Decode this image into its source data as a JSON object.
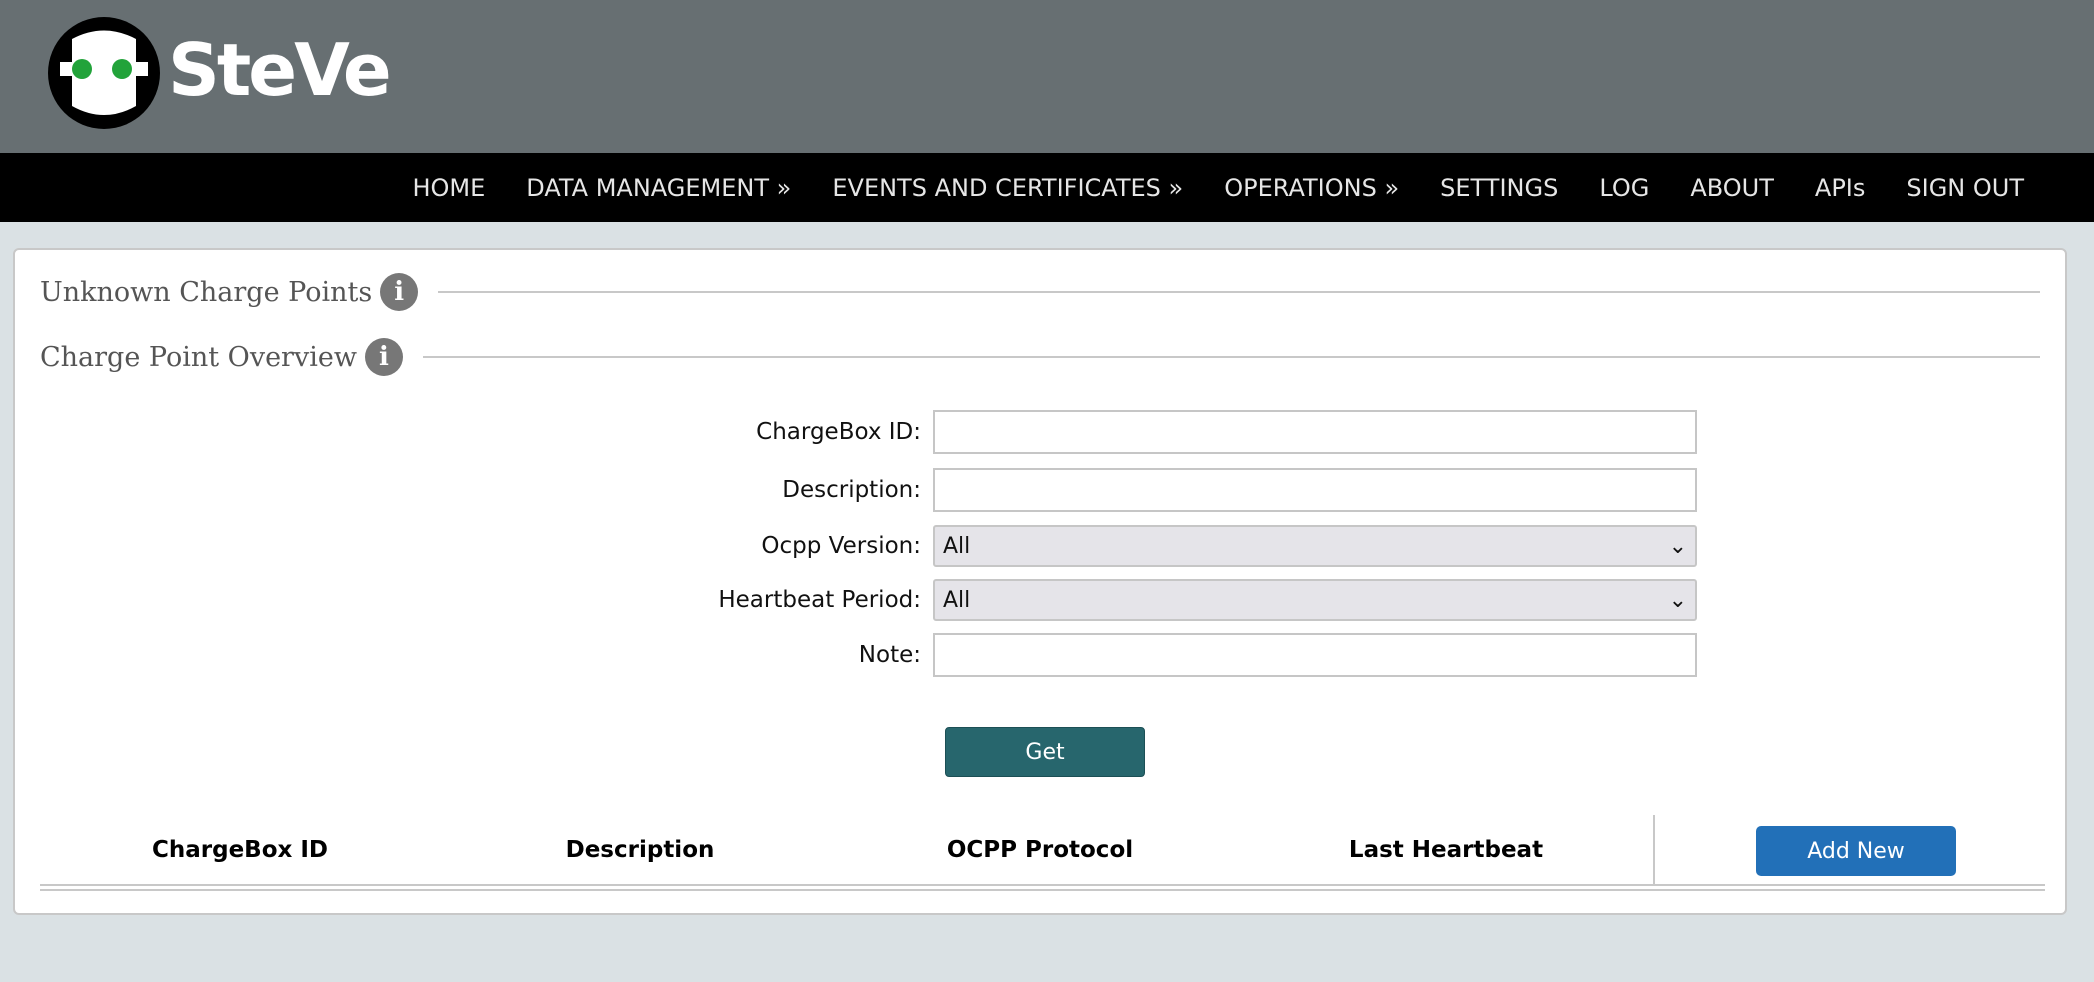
{
  "brand": {
    "name": "SteVe",
    "eye_color": "#22a33a"
  },
  "nav": [
    "HOME",
    "DATA MANAGEMENT »",
    "EVENTS AND CERTIFICATES »",
    "OPERATIONS »",
    "SETTINGS",
    "LOG",
    "ABOUT",
    "APIs",
    "SIGN OUT"
  ],
  "sections": {
    "unknown": "Unknown Charge Points",
    "overview": "Charge Point Overview"
  },
  "form": {
    "chargebox_label": "ChargeBox ID:",
    "chargebox_value": "",
    "description_label": "Description:",
    "description_value": "",
    "ocpp_label": "Ocpp Version:",
    "ocpp_value": "All",
    "heartbeat_label": "Heartbeat Period:",
    "heartbeat_value": "All",
    "note_label": "Note:",
    "note_value": "",
    "get_label": "Get"
  },
  "table": {
    "columns": [
      "ChargeBox ID",
      "Description",
      "OCPP Protocol",
      "Last Heartbeat"
    ],
    "add_label": "Add New"
  },
  "colors": {
    "header": "#676f72",
    "get_button": "#27666d",
    "add_button": "#2270b8"
  }
}
